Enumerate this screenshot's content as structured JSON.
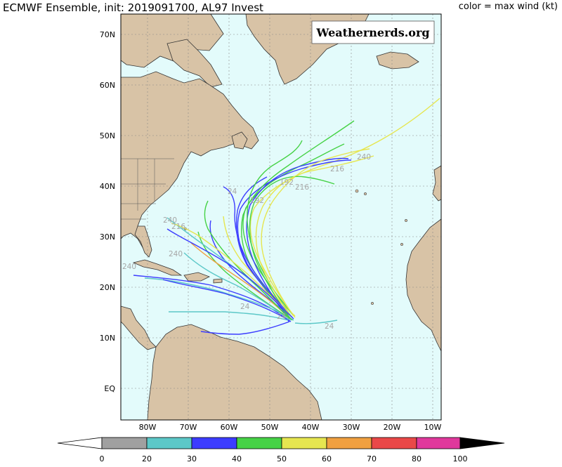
{
  "header": {
    "title": "ECMWF Ensemble, init: 2019091700, AL97 Invest",
    "legend_note": "color = max wind (kt)"
  },
  "watermark": "Weathernerds.org",
  "colors": {
    "ocean": "#e3fbfb",
    "land": "#d8c3a6",
    "border": "#333333",
    "grid": "#888888"
  },
  "axes": {
    "lat_labels": [
      "70N",
      "60N",
      "50N",
      "40N",
      "30N",
      "20N",
      "10N",
      "EQ"
    ],
    "lon_labels": [
      "80W",
      "70W",
      "60W",
      "50W",
      "40W",
      "30W",
      "20W",
      "10W"
    ]
  },
  "colorbar": {
    "ticks": [
      "0",
      "20",
      "30",
      "40",
      "50",
      "60",
      "70",
      "80",
      "100"
    ],
    "colors": [
      "#a0a0a0",
      "#5cc8c8",
      "#3c3cff",
      "#46d246",
      "#e6e650",
      "#f0a040",
      "#ea4848",
      "#e0389c"
    ],
    "under_color": "#ffffff",
    "over_color": "#000000"
  },
  "track_labels": [
    "240",
    "216",
    "192",
    "216",
    "240",
    "192",
    "24",
    "240",
    "216",
    "24",
    "24",
    "24",
    "240"
  ],
  "tracks": {
    "origin": "13.5N 45W",
    "stroke_colors": [
      "#3c3cff",
      "#5cc8c8",
      "#46d246",
      "#e6e650",
      "#f0a040",
      "#a0a0a0"
    ]
  }
}
